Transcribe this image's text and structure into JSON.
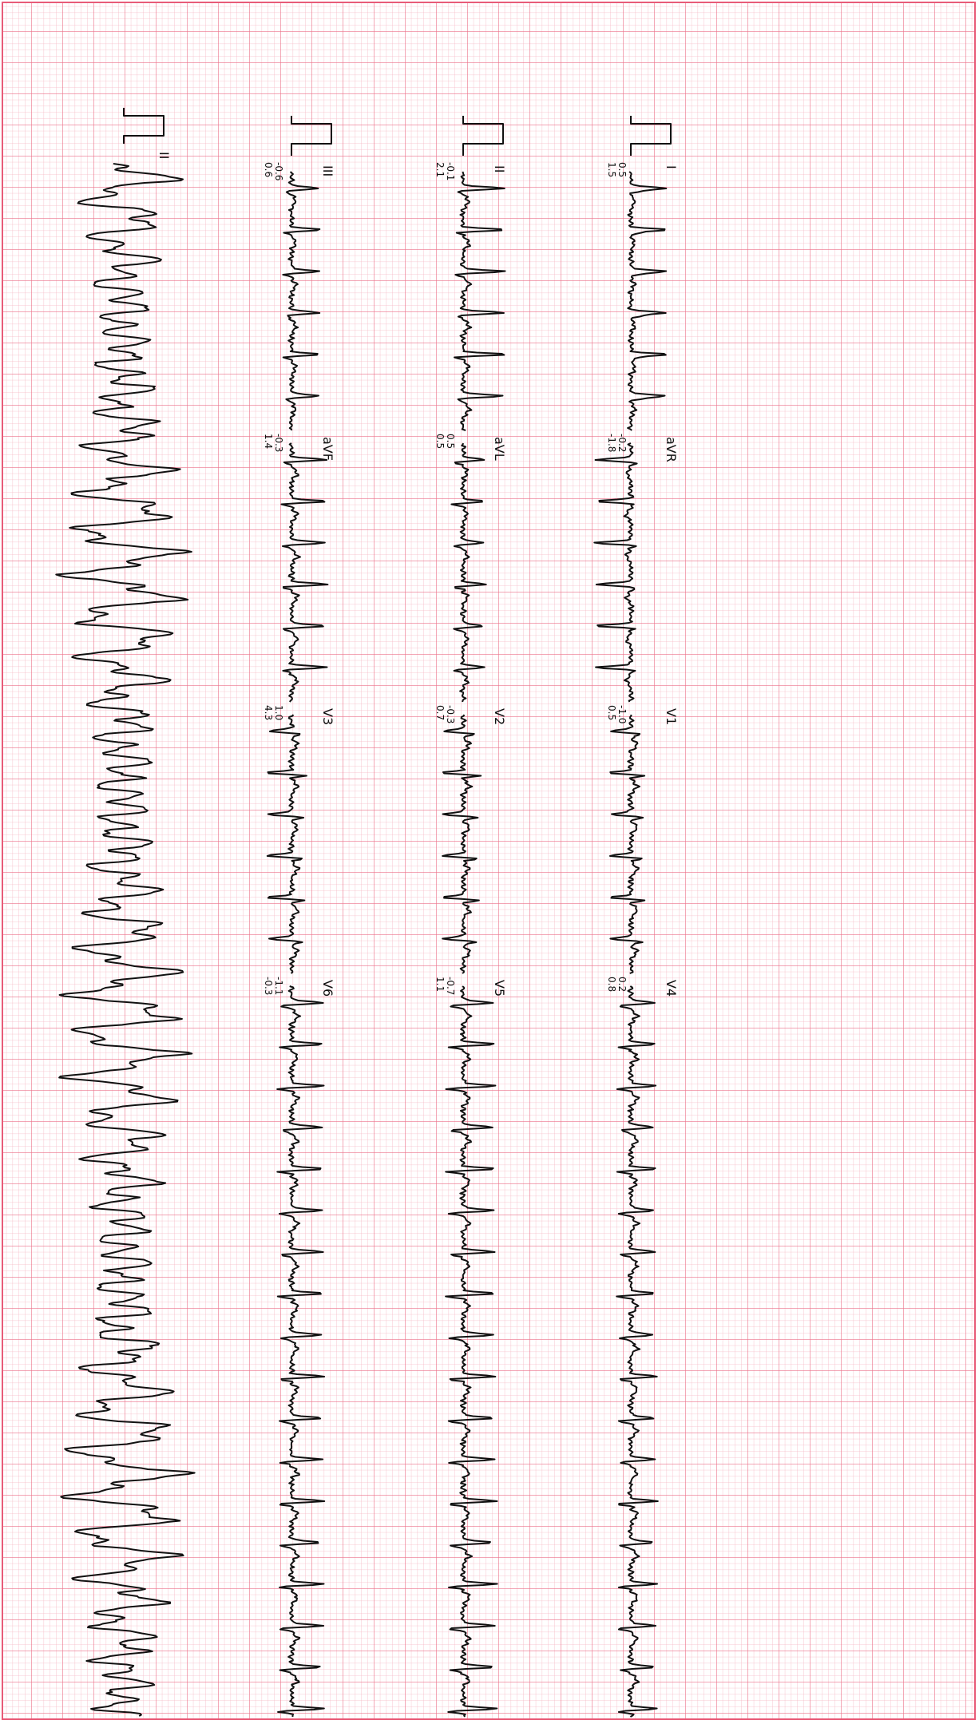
{
  "rows": [
    [
      {
        "label": "I",
        "values": [
          "0.5",
          "1.5"
        ]
      },
      {
        "label": "aVR",
        "values": [
          "-0.2",
          "-1.8"
        ]
      },
      {
        "label": "V1",
        "values": [
          "-1.0",
          "0.5"
        ]
      },
      {
        "label": "V4",
        "values": [
          "0.2",
          "0.8"
        ]
      }
    ],
    [
      {
        "label": "II",
        "values": [
          "-0.1",
          "2.1"
        ]
      },
      {
        "label": "aVL",
        "values": [
          "0.5",
          "0.5"
        ]
      },
      {
        "label": "V2",
        "values": [
          "-0.3",
          "0.7"
        ]
      },
      {
        "label": "V5",
        "values": [
          "-0.7",
          "1.1"
        ]
      }
    ],
    [
      {
        "label": "III",
        "values": [
          "-0.6",
          "0.6"
        ]
      },
      {
        "label": "aVF",
        "values": [
          "-0.3",
          "1.4"
        ]
      },
      {
        "label": "V3",
        "values": [
          "1.0",
          "4.3"
        ]
      },
      {
        "label": "V6",
        "values": [
          "-1.1",
          "-0.3"
        ]
      }
    ]
  ],
  "rhythm_label": "II"
}
